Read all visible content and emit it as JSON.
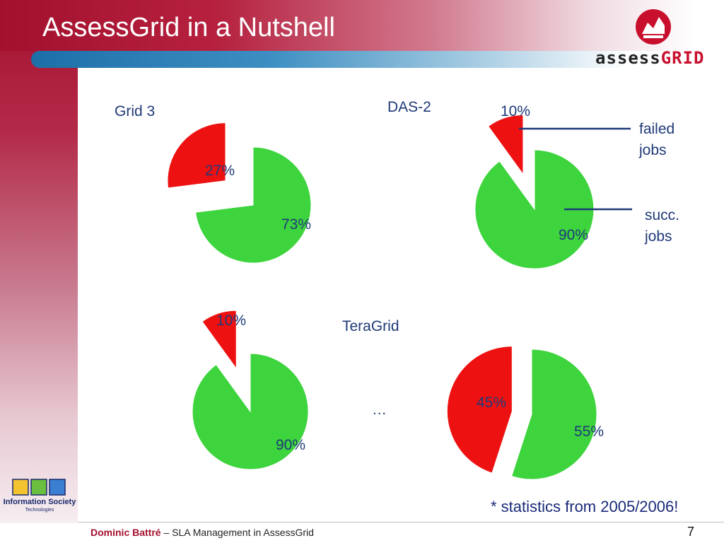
{
  "slide": {
    "title": "AssessGrid in a Nutshell",
    "logo_text_a": "assess",
    "logo_text_b": "GRID",
    "note": "* statistics from 2005/2006!",
    "ellipsis": "…",
    "footer": {
      "author": "Dominic Battré",
      "separator": " – ",
      "talk": "SLA Management in AssessGrid",
      "page": "7"
    },
    "ist_logo": {
      "title": "Information Society",
      "subtitle": "Technologies"
    },
    "legend_failed": "failed\njobs",
    "legend_succ": "succ.\njobs"
  },
  "colors": {
    "failed": "#ee1111",
    "succeeded": "#3dd43d",
    "accent": "#a3102e",
    "label": "#1f3a78"
  },
  "chart_data": [
    {
      "type": "pie",
      "title": "Grid 3",
      "labels": [
        "failed jobs",
        "succ. jobs"
      ],
      "values": [
        27,
        73
      ],
      "value_labels": [
        "27%",
        "73%"
      ]
    },
    {
      "type": "pie",
      "title": "DAS-2",
      "labels": [
        "failed jobs",
        "succ. jobs"
      ],
      "values": [
        10,
        90
      ],
      "value_labels": [
        "10%",
        "90%"
      ]
    },
    {
      "type": "pie",
      "title": "TeraGrid",
      "labels": [
        "failed jobs",
        "succ. jobs"
      ],
      "values": [
        10,
        90
      ],
      "value_labels": [
        "10%",
        "90%"
      ]
    },
    {
      "type": "pie",
      "title": "",
      "labels": [
        "failed jobs",
        "succ. jobs"
      ],
      "values": [
        45,
        55
      ],
      "value_labels": [
        "45%",
        "55%"
      ]
    }
  ]
}
